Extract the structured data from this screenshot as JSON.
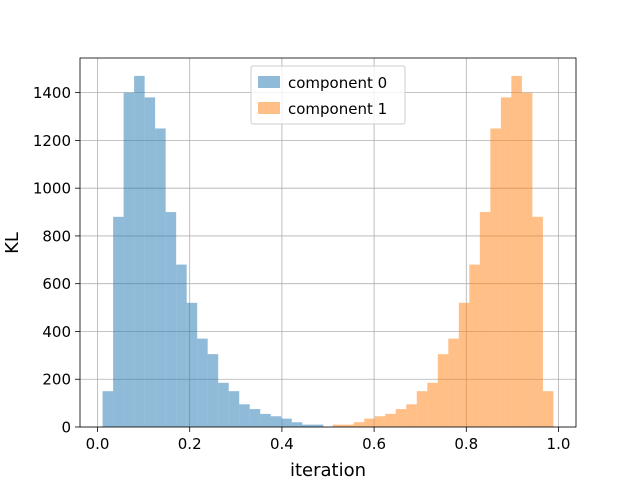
{
  "chart_data": {
    "type": "histogram",
    "title": "",
    "xlabel": "iteration",
    "ylabel": "KL",
    "xlim": [
      -0.038,
      1.038
    ],
    "ylim": [
      0,
      1545
    ],
    "xticks": [
      0.0,
      0.2,
      0.4,
      0.6,
      0.8,
      1.0
    ],
    "xtick_labels": [
      "0.0",
      "0.2",
      "0.4",
      "0.6",
      "0.8",
      "1.0"
    ],
    "yticks": [
      0,
      200,
      400,
      600,
      800,
      1000,
      1200,
      1400
    ],
    "ytick_labels": [
      "0",
      "200",
      "400",
      "600",
      "800",
      "1000",
      "1200",
      "1400"
    ],
    "grid": true,
    "legend_position": "upper-center",
    "series": [
      {
        "name": "component 0",
        "color": "#1f77b4",
        "alpha": 0.5,
        "bins": [
          [
            0.011,
            0.0338,
            150
          ],
          [
            0.0338,
            0.0566,
            880
          ],
          [
            0.0566,
            0.0794,
            1400
          ],
          [
            0.0794,
            0.1022,
            1470
          ],
          [
            0.1022,
            0.125,
            1380
          ],
          [
            0.125,
            0.1478,
            1250
          ],
          [
            0.1478,
            0.1706,
            900
          ],
          [
            0.1706,
            0.1934,
            680
          ],
          [
            0.1934,
            0.2162,
            520
          ],
          [
            0.2162,
            0.239,
            370
          ],
          [
            0.239,
            0.2618,
            305
          ],
          [
            0.2618,
            0.2846,
            185
          ],
          [
            0.2846,
            0.3074,
            150
          ],
          [
            0.3074,
            0.3302,
            95
          ],
          [
            0.3302,
            0.353,
            75
          ],
          [
            0.353,
            0.3758,
            55
          ],
          [
            0.3758,
            0.3986,
            45
          ],
          [
            0.3986,
            0.4214,
            35
          ],
          [
            0.4214,
            0.4442,
            20
          ],
          [
            0.4442,
            0.467,
            10
          ],
          [
            0.467,
            0.4898,
            10
          ]
        ]
      },
      {
        "name": "component 1",
        "color": "#ff7f0e",
        "alpha": 0.5,
        "bins": [
          [
            0.5102,
            0.533,
            10
          ],
          [
            0.533,
            0.5558,
            10
          ],
          [
            0.5558,
            0.5786,
            20
          ],
          [
            0.5786,
            0.6014,
            35
          ],
          [
            0.6014,
            0.6242,
            45
          ],
          [
            0.6242,
            0.647,
            55
          ],
          [
            0.647,
            0.6698,
            75
          ],
          [
            0.6698,
            0.6926,
            95
          ],
          [
            0.6926,
            0.7154,
            150
          ],
          [
            0.7154,
            0.7382,
            185
          ],
          [
            0.7382,
            0.761,
            305
          ],
          [
            0.761,
            0.7838,
            370
          ],
          [
            0.7838,
            0.8066,
            520
          ],
          [
            0.8066,
            0.8294,
            680
          ],
          [
            0.8294,
            0.8522,
            900
          ],
          [
            0.8522,
            0.875,
            1250
          ],
          [
            0.875,
            0.8978,
            1380
          ],
          [
            0.8978,
            0.9206,
            1470
          ],
          [
            0.9206,
            0.9434,
            1400
          ],
          [
            0.9434,
            0.9662,
            880
          ],
          [
            0.9662,
            0.989,
            150
          ]
        ]
      }
    ]
  }
}
